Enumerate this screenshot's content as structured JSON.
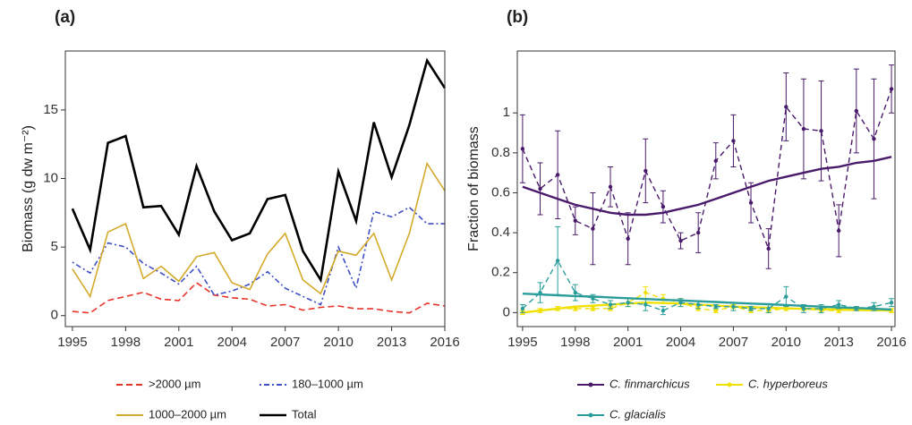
{
  "chart_data": [
    {
      "type": "line",
      "title": "(a)",
      "ylabel": "Biomass (g dw m⁻²)",
      "x": [
        1995,
        1996,
        1997,
        1998,
        1999,
        2000,
        2001,
        2002,
        2003,
        2004,
        2005,
        2006,
        2007,
        2008,
        2009,
        2010,
        2011,
        2012,
        2013,
        2014,
        2015,
        2016
      ],
      "xlim": [
        1994.6,
        2016
      ],
      "xticks": [
        1995,
        1998,
        2001,
        2004,
        2007,
        2010,
        2013,
        2016
      ],
      "ylim": [
        -0.8,
        19.3
      ],
      "yticks": [
        0,
        5,
        10,
        15
      ],
      "series": [
        {
          "name": ">2000 µm",
          "color": "#e8332a",
          "dash": "dashed",
          "values": [
            0.3,
            0.2,
            1.1,
            1.4,
            1.7,
            1.2,
            1.1,
            2.4,
            1.5,
            1.3,
            1.2,
            0.7,
            0.8,
            0.4,
            0.6,
            0.7,
            0.5,
            0.5,
            0.3,
            0.2,
            0.9,
            0.7
          ]
        },
        {
          "name": "180–1000 µm",
          "color": "#3f4fc4",
          "dash": "dotdash",
          "values": [
            3.9,
            3.1,
            5.3,
            5.0,
            3.8,
            3.1,
            2.3,
            3.6,
            1.5,
            1.8,
            2.3,
            3.2,
            2.0,
            1.4,
            0.8,
            5.0,
            2.0,
            7.6,
            7.2,
            7.9,
            6.7,
            6.7
          ]
        },
        {
          "name": "1000–2000 µm",
          "color": "#d4aa2c",
          "dash": "solid",
          "values": [
            3.4,
            1.4,
            6.1,
            6.7,
            2.7,
            3.6,
            2.5,
            4.3,
            4.6,
            2.4,
            1.9,
            4.5,
            6.0,
            2.6,
            1.6,
            4.7,
            4.4,
            6.0,
            2.6,
            6.0,
            11.1,
            9.1
          ]
        },
        {
          "name": "Total",
          "color": "#000000",
          "dash": "solid",
          "values": [
            7.8,
            4.8,
            12.6,
            13.1,
            7.9,
            8.0,
            5.9,
            10.9,
            7.6,
            5.5,
            6.0,
            8.5,
            8.8,
            4.7,
            2.6,
            10.5,
            6.9,
            14.1,
            10.1,
            13.9,
            18.6,
            16.6
          ]
        }
      ]
    },
    {
      "type": "errorline",
      "title": "(b)",
      "ylabel": "Fraction of biomass",
      "x": [
        1995,
        1996,
        1997,
        1998,
        1999,
        2000,
        2001,
        2002,
        2003,
        2004,
        2005,
        2006,
        2007,
        2008,
        2009,
        2010,
        2011,
        2012,
        2013,
        2014,
        2015,
        2016
      ],
      "xlim": [
        1994.7,
        2016.2
      ],
      "xticks": [
        1995,
        1998,
        2001,
        2004,
        2007,
        2010,
        2013,
        2016
      ],
      "ylim": [
        -0.07,
        1.31
      ],
      "yticks": [
        0,
        0.2,
        0.4,
        0.6,
        0.8,
        1
      ],
      "series": [
        {
          "name": "C. finmarchicus",
          "color": "#4a1a6b",
          "values": [
            0.82,
            0.62,
            0.69,
            0.46,
            0.42,
            0.63,
            0.37,
            0.71,
            0.53,
            0.36,
            0.4,
            0.76,
            0.86,
            0.55,
            0.32,
            1.03,
            0.92,
            0.91,
            0.41,
            1.01,
            0.87,
            1.12
          ],
          "errors": [
            0.17,
            0.13,
            0.22,
            0.07,
            0.18,
            0.1,
            0.13,
            0.16,
            0.08,
            0.04,
            0.1,
            0.09,
            0.13,
            0.1,
            0.1,
            0.17,
            0.25,
            0.25,
            0.13,
            0.21,
            0.3,
            0.12
          ],
          "trend": [
            0.63,
            0.6,
            0.57,
            0.54,
            0.52,
            0.5,
            0.49,
            0.49,
            0.5,
            0.52,
            0.54,
            0.57,
            0.6,
            0.63,
            0.66,
            0.68,
            0.7,
            0.72,
            0.73,
            0.75,
            0.76,
            0.78
          ]
        },
        {
          "name": "C. hyperboreus",
          "color": "#f0e000",
          "values": [
            0.0,
            0.01,
            0.02,
            0.02,
            0.02,
            0.02,
            0.05,
            0.1,
            0.07,
            0.05,
            0.02,
            0.01,
            0.03,
            0.01,
            0.01,
            0.02,
            0.02,
            0.01,
            0.01,
            0.02,
            0.02,
            0.01
          ],
          "errors": [
            0.01,
            0.01,
            0.01,
            0.01,
            0.01,
            0.01,
            0.02,
            0.03,
            0.02,
            0.02,
            0.01,
            0.01,
            0.01,
            0.01,
            0.01,
            0.01,
            0.01,
            0.01,
            0.01,
            0.01,
            0.01,
            0.01
          ],
          "trend": [
            0.0,
            0.01,
            0.02,
            0.03,
            0.035,
            0.04,
            0.045,
            0.05,
            0.048,
            0.045,
            0.04,
            0.035,
            0.03,
            0.027,
            0.024,
            0.021,
            0.019,
            0.017,
            0.015,
            0.013,
            0.012,
            0.01
          ]
        },
        {
          "name": "C. glacialis",
          "color": "#2a9d9a",
          "values": [
            0.02,
            0.1,
            0.26,
            0.1,
            0.07,
            0.04,
            0.05,
            0.04,
            0.01,
            0.05,
            0.04,
            0.03,
            0.03,
            0.02,
            0.02,
            0.08,
            0.02,
            0.02,
            0.04,
            0.02,
            0.03,
            0.05
          ],
          "errors": [
            0.02,
            0.05,
            0.17,
            0.04,
            0.02,
            0.02,
            0.02,
            0.03,
            0.02,
            0.02,
            0.02,
            0.01,
            0.02,
            0.01,
            0.02,
            0.05,
            0.02,
            0.02,
            0.02,
            0.01,
            0.02,
            0.02
          ],
          "trend": [
            0.095,
            0.091,
            0.087,
            0.083,
            0.08,
            0.076,
            0.072,
            0.068,
            0.064,
            0.061,
            0.057,
            0.053,
            0.049,
            0.045,
            0.042,
            0.038,
            0.034,
            0.03,
            0.026,
            0.023,
            0.019,
            0.015
          ]
        }
      ]
    }
  ]
}
